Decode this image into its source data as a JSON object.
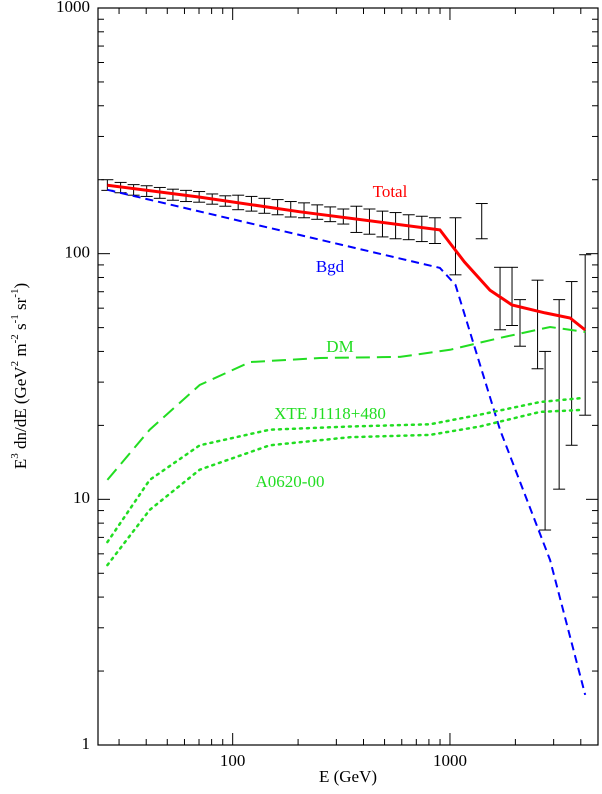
{
  "chart_data": {
    "type": "line",
    "xlabel": "E (GeV)",
    "ylabel": [
      "E",
      "3",
      " dn/dE (GeV",
      "2",
      " m",
      "-2",
      " s",
      "-1",
      " sr",
      "-1",
      ")"
    ],
    "log_x": true,
    "log_y": true,
    "xlim": [
      24,
      4800
    ],
    "ylim": [
      1,
      1000
    ],
    "xticks": [
      100,
      1000
    ],
    "yticks": [
      1,
      10,
      100,
      1000
    ],
    "series": [
      {
        "name": "Total",
        "color": "#ff0000",
        "style": "solid",
        "x": [
          26.5,
          70.5,
          204,
          899,
          1020,
          1166,
          1528,
          1930,
          2740,
          3570,
          4190
        ],
        "values": [
          190,
          170,
          148,
          125,
          108,
          92.5,
          71,
          61.8,
          57.4,
          54.7,
          48.9
        ]
      },
      {
        "name": "Bgd",
        "color": "#0000ff",
        "style": "dashed",
        "x": [
          26.5,
          899,
          1060,
          1700,
          2890,
          4190
        ],
        "values": [
          182,
          87.5,
          74.6,
          19.2,
          5.66,
          1.6
        ]
      },
      {
        "name": "DM",
        "color": "#22dd22",
        "style": "longdash",
        "x": [
          26.5,
          41.5,
          70.5,
          120,
          252,
          589,
          1000,
          1700,
          2890,
          4190
        ],
        "values": [
          12.0,
          19.2,
          29.2,
          36.2,
          37.6,
          38.0,
          40.6,
          45.4,
          50.3,
          48.0
        ]
      },
      {
        "name": "XTE J1118+480",
        "color": "#22dd22",
        "style": "dotted",
        "x": [
          26.5,
          41.5,
          70.5,
          148,
          346,
          809,
          1372,
          2600,
          3970
        ],
        "values": [
          6.7,
          12.0,
          16.6,
          19.2,
          19.8,
          20.2,
          22.1,
          24.9,
          25.8
        ]
      },
      {
        "name": "A0620-00",
        "color": "#22dd22",
        "style": "dotted",
        "x": [
          26.5,
          41.5,
          70.5,
          148,
          346,
          809,
          1372,
          2600,
          3970
        ],
        "values": [
          5.4,
          9.06,
          13.2,
          16.6,
          17.9,
          18.3,
          19.8,
          22.7,
          23.1
        ]
      }
    ],
    "data_points": {
      "color": "#000000",
      "x": [
        26.5,
        30.5,
        35.0,
        40.2,
        46.2,
        53.1,
        61.0,
        70.1,
        80.5,
        92.5,
        106,
        122,
        140,
        161,
        185,
        213,
        245,
        281,
        323,
        371,
        426,
        489,
        562,
        646,
        742,
        853,
        1060,
        1400,
        1700,
        1930,
        2100,
        2530,
        2740,
        3180,
        3630,
        4190
      ],
      "values": [
        190,
        186,
        182,
        180,
        177,
        174,
        172,
        170,
        167,
        164,
        162,
        160,
        157,
        155,
        152,
        150,
        148,
        145,
        142,
        139,
        136,
        133,
        131,
        129,
        127,
        125,
        100,
        135,
        65,
        67,
        52,
        52,
        18,
        26,
        35,
        47
      ],
      "lower": [
        181,
        177,
        173,
        171,
        168,
        165,
        163,
        162,
        159,
        156,
        151,
        149,
        146,
        144,
        141,
        140,
        138,
        135,
        132,
        122,
        120,
        117,
        115,
        114,
        112,
        110,
        82,
        115,
        49,
        51,
        42,
        34,
        7.5,
        11,
        16.6,
        22
      ],
      "upper": [
        200,
        195,
        191,
        189,
        186,
        183,
        181,
        179,
        175,
        172,
        173,
        171,
        168,
        166,
        163,
        161,
        158,
        155,
        152,
        156,
        152,
        149,
        147,
        144,
        142,
        140,
        140,
        160,
        88,
        88,
        65,
        78,
        40,
        65,
        77,
        99
      ]
    }
  }
}
